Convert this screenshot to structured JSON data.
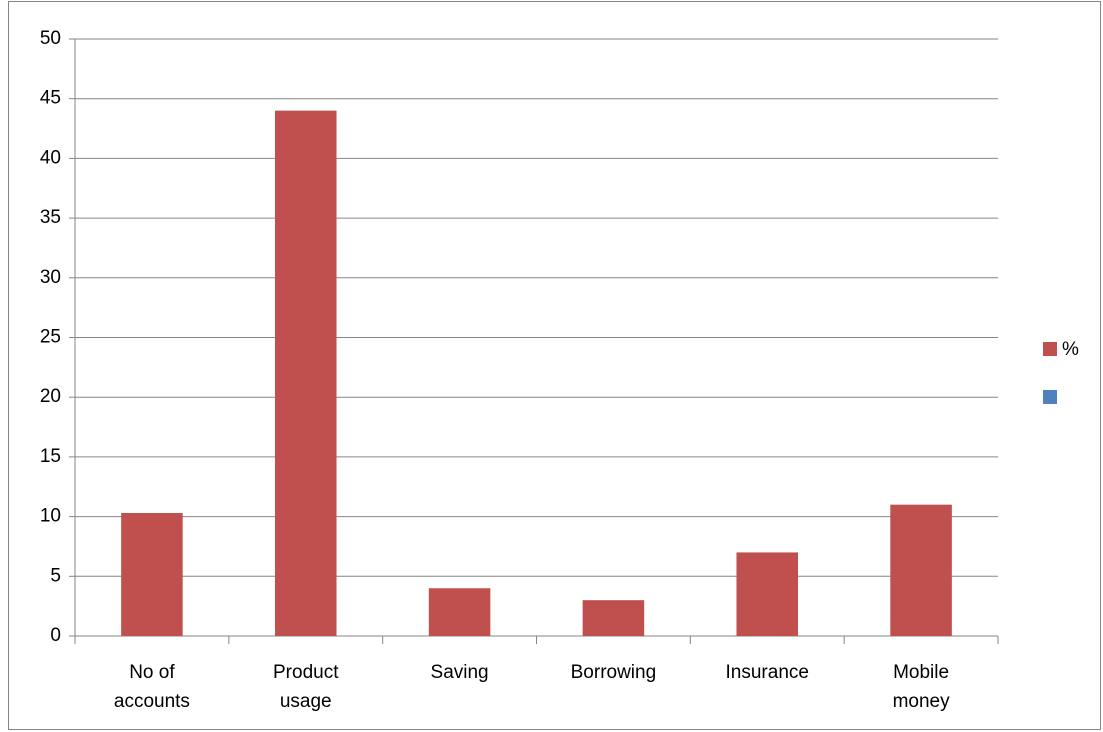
{
  "chart_data": {
    "type": "bar",
    "categories": [
      "No of accounts",
      "Product usage",
      "Saving",
      "Borrowing",
      "Insurance",
      "Mobile money"
    ],
    "series": [
      {
        "name": "%",
        "color": "#c0504d",
        "values": [
          10.3,
          44,
          4,
          3,
          7,
          11
        ]
      },
      {
        "name": null,
        "color": "#4f81bd",
        "values": [
          null,
          null,
          null,
          null,
          null,
          null
        ]
      }
    ],
    "ylim": [
      0,
      50
    ],
    "yticks": [
      0,
      5,
      10,
      15,
      20,
      25,
      30,
      35,
      40,
      45,
      50
    ],
    "grid": true,
    "legend": "right"
  }
}
